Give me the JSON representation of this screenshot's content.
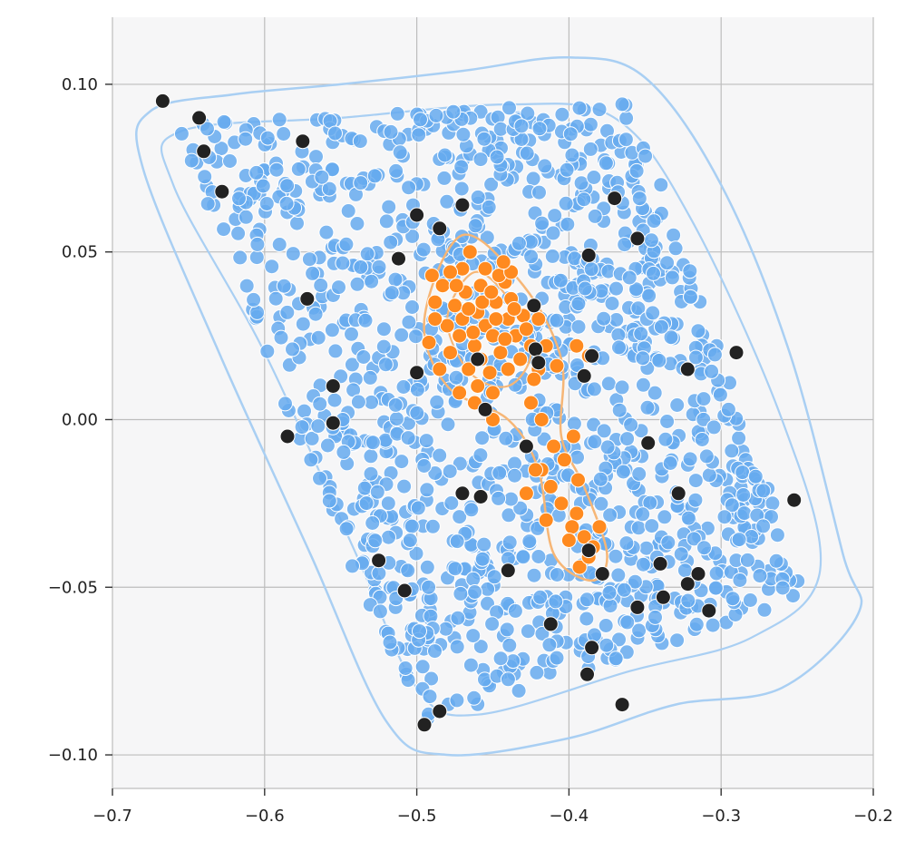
{
  "chart_data": {
    "type": "scatter",
    "title": "",
    "xlabel": "",
    "ylabel": "",
    "xlim": [
      -0.7,
      -0.2
    ],
    "ylim": [
      -0.11,
      0.12
    ],
    "grid": true,
    "x_ticks": [
      -0.7,
      -0.6,
      -0.5,
      -0.4,
      -0.3,
      -0.2
    ],
    "x_tick_labels": [
      "−0.7",
      "−0.6",
      "−0.5",
      "−0.4",
      "−0.3",
      "−0.2"
    ],
    "y_ticks": [
      -0.1,
      -0.05,
      0.0,
      0.05,
      0.1
    ],
    "y_tick_labels": [
      "−0.10",
      "−0.05",
      "0.00",
      "0.05",
      "0.10"
    ],
    "colors": {
      "background": "#f6f6f7",
      "grid": "#bdbdbd",
      "spine": "#c8c8c8",
      "blue": "#66aaee",
      "blue_contour": "#a9cff3",
      "orange": "#ff8a1f",
      "orange_contour": "#f6b676",
      "black": "#222222"
    },
    "series": [
      {
        "role": "background points with density contours",
        "color": "#66aaee",
        "region_corners": [
          [
            -0.668,
            0.092
          ],
          [
            -0.355,
            0.098
          ],
          [
            -0.235,
            -0.055
          ],
          [
            -0.505,
            -0.097
          ]
        ],
        "approx_point_count": 1300
      },
      {
        "role": "highlighted cluster with density contours",
        "color": "#ff8a1f",
        "points": [
          [
            -0.455,
            0.028
          ],
          [
            -0.46,
            0.032
          ],
          [
            -0.45,
            0.025
          ],
          [
            -0.448,
            0.035
          ],
          [
            -0.462,
            0.022
          ],
          [
            -0.47,
            0.03
          ],
          [
            -0.44,
            0.03
          ],
          [
            -0.435,
            0.025
          ],
          [
            -0.445,
            0.02
          ],
          [
            -0.458,
            0.04
          ],
          [
            -0.468,
            0.038
          ],
          [
            -0.475,
            0.034
          ],
          [
            -0.48,
            0.028
          ],
          [
            -0.466,
            0.015
          ],
          [
            -0.452,
            0.014
          ],
          [
            -0.438,
            0.036
          ],
          [
            -0.43,
            0.031
          ],
          [
            -0.425,
            0.022
          ],
          [
            -0.442,
            0.041
          ],
          [
            -0.455,
            0.045
          ],
          [
            -0.47,
            0.045
          ],
          [
            -0.483,
            0.04
          ],
          [
            -0.488,
            0.035
          ],
          [
            -0.478,
            0.02
          ],
          [
            -0.46,
            0.01
          ],
          [
            -0.45,
            0.008
          ],
          [
            -0.44,
            0.015
          ],
          [
            -0.432,
            0.018
          ],
          [
            -0.448,
            0.03
          ],
          [
            -0.457,
            0.035
          ],
          [
            -0.463,
            0.026
          ],
          [
            -0.472,
            0.025
          ],
          [
            -0.442,
            0.024
          ],
          [
            -0.436,
            0.033
          ],
          [
            -0.451,
            0.038
          ],
          [
            -0.466,
            0.033
          ],
          [
            -0.428,
            0.027
          ],
          [
            -0.458,
            0.018
          ],
          [
            -0.446,
            0.043
          ],
          [
            -0.474,
            0.04
          ],
          [
            -0.492,
            0.023
          ],
          [
            -0.485,
            0.015
          ],
          [
            -0.472,
            0.008
          ],
          [
            -0.462,
            0.005
          ],
          [
            -0.45,
            0.0
          ],
          [
            -0.49,
            0.043
          ],
          [
            -0.478,
            0.044
          ],
          [
            -0.465,
            0.05
          ],
          [
            -0.488,
            0.03
          ],
          [
            -0.438,
            0.044
          ],
          [
            -0.42,
            0.03
          ],
          [
            -0.415,
            0.022
          ],
          [
            -0.42,
            0.015
          ],
          [
            -0.423,
            0.012
          ],
          [
            -0.425,
            0.005
          ],
          [
            -0.408,
            0.016
          ],
          [
            -0.395,
            0.022
          ],
          [
            -0.387,
            0.019
          ],
          [
            -0.418,
            0.0
          ],
          [
            -0.41,
            -0.008
          ],
          [
            -0.403,
            -0.012
          ],
          [
            -0.397,
            -0.005
          ],
          [
            -0.418,
            -0.015
          ],
          [
            -0.412,
            -0.02
          ],
          [
            -0.405,
            -0.025
          ],
          [
            -0.428,
            -0.022
          ],
          [
            -0.422,
            -0.015
          ],
          [
            -0.415,
            -0.03
          ],
          [
            -0.395,
            -0.028
          ],
          [
            -0.39,
            -0.035
          ],
          [
            -0.398,
            -0.032
          ],
          [
            -0.384,
            -0.038
          ],
          [
            -0.38,
            -0.032
          ],
          [
            -0.393,
            -0.044
          ],
          [
            -0.4,
            -0.036
          ],
          [
            -0.387,
            -0.041
          ],
          [
            -0.394,
            -0.018
          ],
          [
            -0.443,
            0.047
          ]
        ]
      },
      {
        "role": "outlined dark points",
        "color": "#222222",
        "points": [
          [
            -0.667,
            0.095
          ],
          [
            -0.643,
            0.09
          ],
          [
            -0.64,
            0.08
          ],
          [
            -0.628,
            0.068
          ],
          [
            -0.575,
            0.083
          ],
          [
            -0.5,
            0.061
          ],
          [
            -0.47,
            0.064
          ],
          [
            -0.485,
            0.057
          ],
          [
            -0.512,
            0.048
          ],
          [
            -0.572,
            0.036
          ],
          [
            -0.555,
            0.01
          ],
          [
            -0.555,
            -0.001
          ],
          [
            -0.585,
            -0.005
          ],
          [
            -0.5,
            0.014
          ],
          [
            -0.46,
            0.018
          ],
          [
            -0.455,
            0.003
          ],
          [
            -0.423,
            0.034
          ],
          [
            -0.422,
            0.021
          ],
          [
            -0.42,
            0.017
          ],
          [
            -0.387,
            0.049
          ],
          [
            -0.385,
            0.019
          ],
          [
            -0.39,
            0.013
          ],
          [
            -0.37,
            0.066
          ],
          [
            -0.355,
            0.054
          ],
          [
            -0.322,
            0.015
          ],
          [
            -0.29,
            0.02
          ],
          [
            -0.348,
            -0.007
          ],
          [
            -0.328,
            -0.022
          ],
          [
            -0.252,
            -0.024
          ],
          [
            -0.428,
            -0.008
          ],
          [
            -0.47,
            -0.022
          ],
          [
            -0.458,
            -0.023
          ],
          [
            -0.525,
            -0.042
          ],
          [
            -0.508,
            -0.051
          ],
          [
            -0.44,
            -0.045
          ],
          [
            -0.387,
            -0.039
          ],
          [
            -0.378,
            -0.046
          ],
          [
            -0.34,
            -0.043
          ],
          [
            -0.315,
            -0.046
          ],
          [
            -0.322,
            -0.049
          ],
          [
            -0.338,
            -0.053
          ],
          [
            -0.355,
            -0.056
          ],
          [
            -0.308,
            -0.057
          ],
          [
            -0.412,
            -0.061
          ],
          [
            -0.385,
            -0.068
          ],
          [
            -0.388,
            -0.076
          ],
          [
            -0.365,
            -0.085
          ],
          [
            -0.485,
            -0.087
          ],
          [
            -0.495,
            -0.091
          ]
        ]
      }
    ]
  }
}
